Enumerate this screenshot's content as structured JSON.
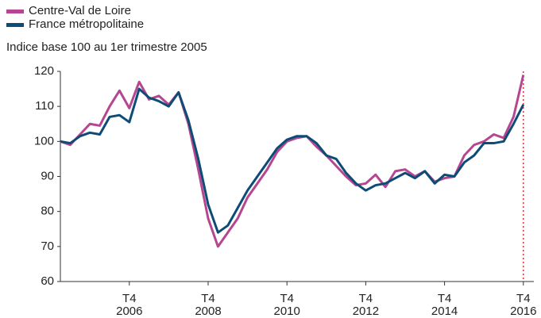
{
  "chart_data": {
    "type": "line",
    "subtitle": "Indice base 100 au 1er trimestre 2005",
    "categories": [
      null,
      null,
      null,
      null,
      null,
      null,
      null,
      [
        "T4",
        "2006"
      ],
      null,
      null,
      null,
      null,
      null,
      null,
      null,
      [
        "T4",
        "2008"
      ],
      null,
      null,
      null,
      null,
      null,
      null,
      null,
      [
        "T4",
        "2010"
      ],
      null,
      null,
      null,
      null,
      null,
      null,
      null,
      [
        "T4",
        "2012"
      ],
      null,
      null,
      null,
      null,
      null,
      null,
      null,
      [
        "T4",
        "2014"
      ],
      null,
      null,
      null,
      null,
      null,
      null,
      null,
      [
        "T4",
        "2016"
      ]
    ],
    "series": [
      {
        "name": "Centre-Val de Loire",
        "color": "#b5468f",
        "values": [
          100,
          99,
          102,
          105,
          104.5,
          110,
          114.5,
          109.5,
          117,
          112,
          113,
          110.5,
          114,
          105,
          92,
          78,
          70,
          74,
          78,
          84,
          88,
          92,
          97,
          100,
          101,
          101.5,
          98.5,
          96,
          93,
          90,
          87.5,
          88,
          90.5,
          87,
          91.5,
          92,
          90,
          91.5,
          88.5,
          89.5,
          90,
          96,
          99,
          100,
          102,
          101,
          107,
          119
        ]
      },
      {
        "name": "France métropolitaine",
        "color": "#0d4c77",
        "values": [
          100,
          99.5,
          101.5,
          102.5,
          102,
          107,
          107.5,
          105.5,
          115,
          112.5,
          111.5,
          110,
          114,
          106,
          95,
          82,
          74,
          76,
          81,
          86,
          90,
          94,
          98,
          100.5,
          101.5,
          101.5,
          99.5,
          96,
          95,
          91,
          88,
          86,
          87.5,
          88,
          89.5,
          91,
          89.5,
          91.5,
          88,
          90.5,
          90,
          94,
          96,
          99.5,
          99.5,
          100,
          105,
          110.5
        ]
      }
    ],
    "ylim": [
      60,
      120
    ],
    "yticks": [
      60,
      70,
      80,
      90,
      100,
      110,
      120
    ],
    "grid": false
  }
}
